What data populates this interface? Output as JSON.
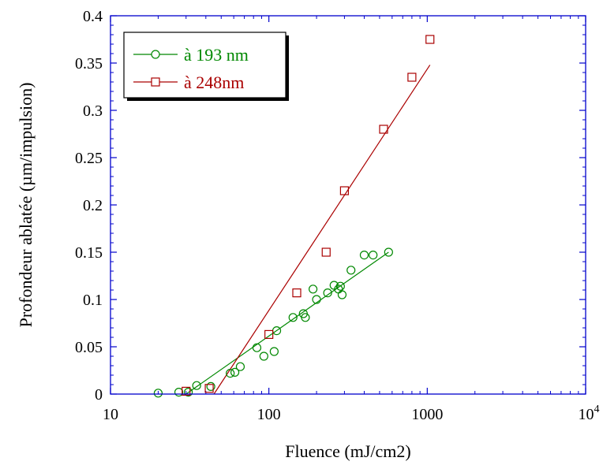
{
  "chart_data": {
    "type": "scatter",
    "title": "",
    "xlabel": "Fluence (mJ/cm2)",
    "ylabel": "Profondeur ablatée (µm/impulsion)",
    "xscale": "log",
    "xlim": [
      10,
      10000
    ],
    "ylim": [
      0,
      0.4
    ],
    "x_ticks": [
      {
        "value": 10,
        "label": "10"
      },
      {
        "value": 100,
        "label": "100"
      },
      {
        "value": 1000,
        "label": "1000"
      },
      {
        "value": 10000,
        "label": "10",
        "sup": "4"
      }
    ],
    "y_ticks": [
      {
        "value": 0,
        "label": "0"
      },
      {
        "value": 0.05,
        "label": "0.05"
      },
      {
        "value": 0.1,
        "label": "0.1"
      },
      {
        "value": 0.15,
        "label": "0.15"
      },
      {
        "value": 0.2,
        "label": "0.2"
      },
      {
        "value": 0.25,
        "label": "0.25"
      },
      {
        "value": 0.3,
        "label": "0.3"
      },
      {
        "value": 0.35,
        "label": "0.35"
      },
      {
        "value": 0.4,
        "label": "0.4"
      }
    ],
    "grid": false,
    "legend_position": "top-left",
    "series": [
      {
        "name": "à 193 nm",
        "color": "#008800",
        "marker": "circle",
        "points": [
          [
            20,
            0.001
          ],
          [
            27,
            0.002
          ],
          [
            31,
            0.002
          ],
          [
            35,
            0.009
          ],
          [
            43,
            0.008
          ],
          [
            57,
            0.022
          ],
          [
            61,
            0.023
          ],
          [
            66,
            0.029
          ],
          [
            84,
            0.049
          ],
          [
            93,
            0.04
          ],
          [
            108,
            0.045
          ],
          [
            112,
            0.067
          ],
          [
            142,
            0.081
          ],
          [
            165,
            0.085
          ],
          [
            170,
            0.081
          ],
          [
            190,
            0.111
          ],
          [
            200,
            0.1
          ],
          [
            235,
            0.107
          ],
          [
            258,
            0.115
          ],
          [
            275,
            0.111
          ],
          [
            283,
            0.114
          ],
          [
            290,
            0.105
          ],
          [
            330,
            0.131
          ],
          [
            400,
            0.147
          ],
          [
            455,
            0.147
          ],
          [
            570,
            0.15
          ]
        ],
        "fit_line": [
          [
            30,
            0.0
          ],
          [
            570,
            0.15
          ]
        ]
      },
      {
        "name": "à 248nm",
        "color": "#aa0000",
        "marker": "square",
        "points": [
          [
            30,
            0.003
          ],
          [
            42,
            0.006
          ],
          [
            100,
            0.063
          ],
          [
            150,
            0.107
          ],
          [
            230,
            0.15
          ],
          [
            300,
            0.215
          ],
          [
            530,
            0.28
          ],
          [
            800,
            0.335
          ],
          [
            1040,
            0.375
          ]
        ],
        "fit_line": [
          [
            45,
            0.0
          ],
          [
            1040,
            0.348
          ]
        ]
      }
    ]
  }
}
